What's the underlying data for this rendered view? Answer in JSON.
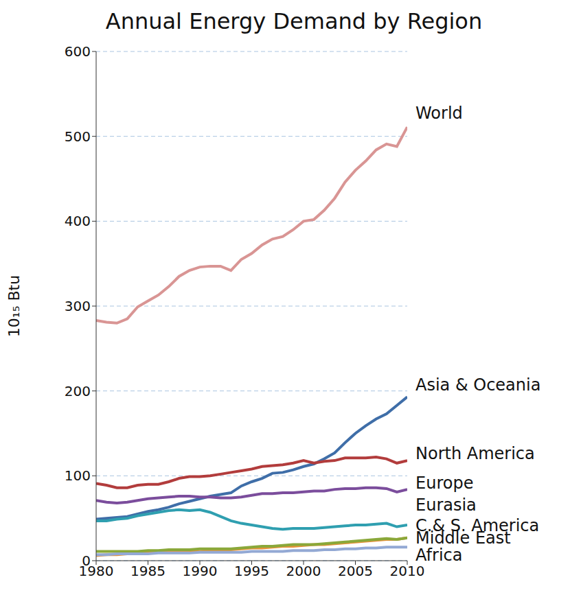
{
  "chart_data": {
    "type": "line",
    "title": "Annual Energy Demand by Region",
    "y_label": "10₁₅ Btu",
    "x": [
      1980,
      1981,
      1982,
      1983,
      1984,
      1985,
      1986,
      1987,
      1988,
      1989,
      1990,
      1991,
      1992,
      1993,
      1994,
      1995,
      1996,
      1997,
      1998,
      1999,
      2000,
      2001,
      2002,
      2003,
      2004,
      2005,
      2006,
      2007,
      2008,
      2009,
      2010
    ],
    "xlim": [
      1980,
      2010
    ],
    "xticks": [
      1980,
      1985,
      1990,
      1995,
      2000,
      2005,
      2010
    ],
    "ylim": [
      0,
      600
    ],
    "yticks": [
      0,
      100,
      200,
      300,
      400,
      500,
      600
    ],
    "grid": true,
    "series": [
      {
        "name": "World",
        "color": "#d99594",
        "values": [
          283,
          281,
          280,
          285,
          299,
          306,
          313,
          323,
          335,
          342,
          346,
          347,
          347,
          342,
          355,
          362,
          372,
          379,
          382,
          390,
          400,
          402,
          413,
          427,
          446,
          460,
          471,
          484,
          491,
          488,
          511
        ]
      },
      {
        "name": "Asia & Oceania",
        "color": "#3f6ea8",
        "values": [
          49,
          50,
          51,
          52,
          55,
          58,
          60,
          63,
          67,
          70,
          73,
          76,
          78,
          80,
          88,
          93,
          97,
          103,
          104,
          107,
          111,
          114,
          120,
          127,
          139,
          150,
          159,
          167,
          173,
          183,
          193
        ]
      },
      {
        "name": "North America",
        "color": "#b23c3c",
        "values": [
          91,
          89,
          86,
          86,
          89,
          90,
          90,
          93,
          97,
          99,
          99,
          100,
          102,
          104,
          106,
          108,
          111,
          112,
          113,
          115,
          118,
          115,
          117,
          118,
          121,
          121,
          121,
          122,
          120,
          115,
          118
        ]
      },
      {
        "name": "Europe",
        "color": "#7b4d9c",
        "values": [
          71,
          69,
          68,
          69,
          71,
          73,
          74,
          75,
          76,
          76,
          75,
          75,
          74,
          74,
          75,
          77,
          79,
          79,
          80,
          80,
          81,
          82,
          82,
          84,
          85,
          85,
          86,
          86,
          85,
          81,
          84
        ]
      },
      {
        "name": "Eurasia",
        "color": "#2f9fb0",
        "values": [
          47,
          47,
          49,
          50,
          53,
          55,
          57,
          59,
          60,
          59,
          60,
          57,
          52,
          47,
          44,
          42,
          40,
          38,
          37,
          38,
          38,
          38,
          39,
          40,
          41,
          42,
          42,
          43,
          44,
          40,
          42
        ]
      },
      {
        "name": "Middle East",
        "color": "#e8923a",
        "values": [
          6,
          7,
          7,
          8,
          9,
          9,
          10,
          10,
          11,
          11,
          11,
          12,
          13,
          13,
          14,
          15,
          15,
          16,
          17,
          17,
          18,
          19,
          19,
          20,
          21,
          22,
          23,
          24,
          25,
          25,
          27
        ]
      },
      {
        "name": "C.& S. America",
        "color": "#8aa83a",
        "values": [
          11,
          11,
          11,
          11,
          11,
          12,
          12,
          13,
          13,
          13,
          14,
          14,
          14,
          14,
          15,
          16,
          17,
          17,
          18,
          19,
          19,
          19,
          20,
          21,
          22,
          23,
          24,
          25,
          26,
          25,
          27
        ]
      },
      {
        "name": "Africa",
        "color": "#93a9d4",
        "values": [
          7,
          7,
          8,
          8,
          8,
          8,
          9,
          9,
          9,
          9,
          10,
          10,
          10,
          10,
          10,
          11,
          11,
          11,
          11,
          12,
          12,
          12,
          13,
          13,
          14,
          14,
          15,
          15,
          16,
          16,
          16
        ]
      }
    ]
  }
}
